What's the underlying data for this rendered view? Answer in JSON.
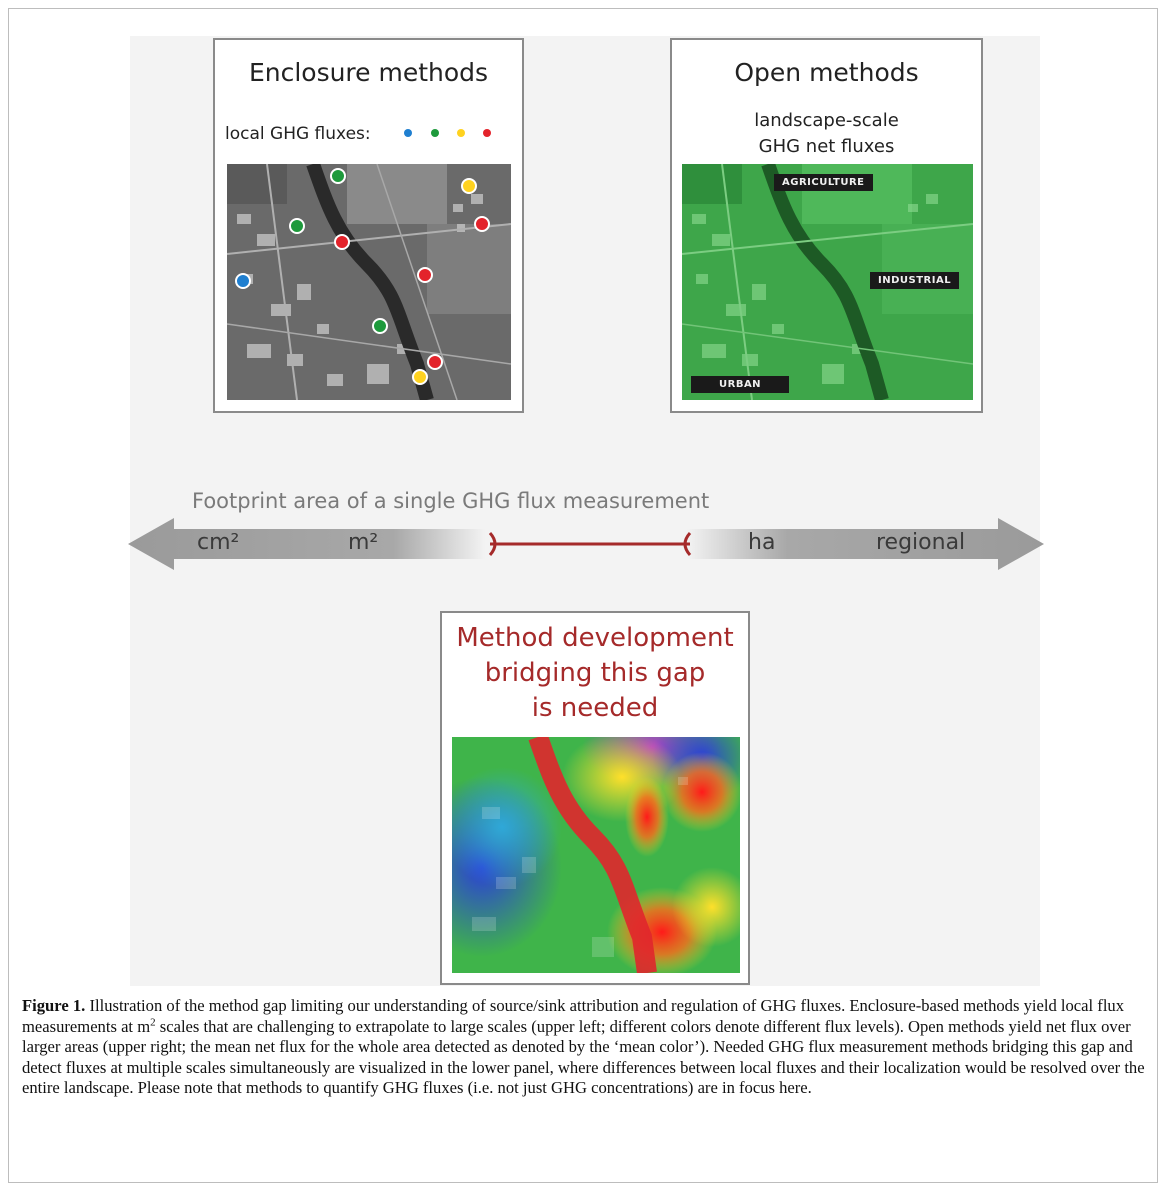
{
  "figure": {
    "enclosure_panel": {
      "title": "Enclosure methods",
      "legend_label": "local GHG fluxes:",
      "legend_colors": [
        "#1f7fd0",
        "#1e9a3c",
        "#ffd21f",
        "#e3232b"
      ]
    },
    "open_panel": {
      "title": "Open methods",
      "subtitle_line1": "landscape-scale",
      "subtitle_line2": "GHG net fluxes",
      "zones": [
        "AGRICULTURE",
        "INDUSTRIAL",
        "URBAN"
      ]
    },
    "scale_axis": {
      "caption": "Footprint area of a single GHG flux measurement",
      "labels": [
        "cm²",
        "m²",
        "ha",
        "regional"
      ],
      "gap_color": "#a52a2a"
    },
    "gap_panel": {
      "title_line1": "Method development",
      "title_line2": "bridging this gap",
      "title_line3": "is needed",
      "title_color": "#a52a2a"
    }
  },
  "caption": {
    "label": "Figure 1.",
    "text_part1": " Illustration of the method gap limiting our understanding of source/sink attribution and regulation of GHG fluxes. Enclosure-based methods yield local flux measurements at m",
    "superscript": "2",
    "text_part2": " scales that are challenging to extrapolate to large scales (upper left; different colors denote different flux levels). Open methods yield net flux over larger areas (upper right; the mean net flux for the whole area detected as denoted by the ‘mean color’). Needed GHG flux measurement methods bridging this gap and detect fluxes at multiple scales simultaneously are visualized in the lower panel, where differences between local fluxes and their localization would be resolved over the entire landscape. Please note that methods to quantify GHG fluxes (i.e. not just GHG concentrations) are in focus here."
  }
}
